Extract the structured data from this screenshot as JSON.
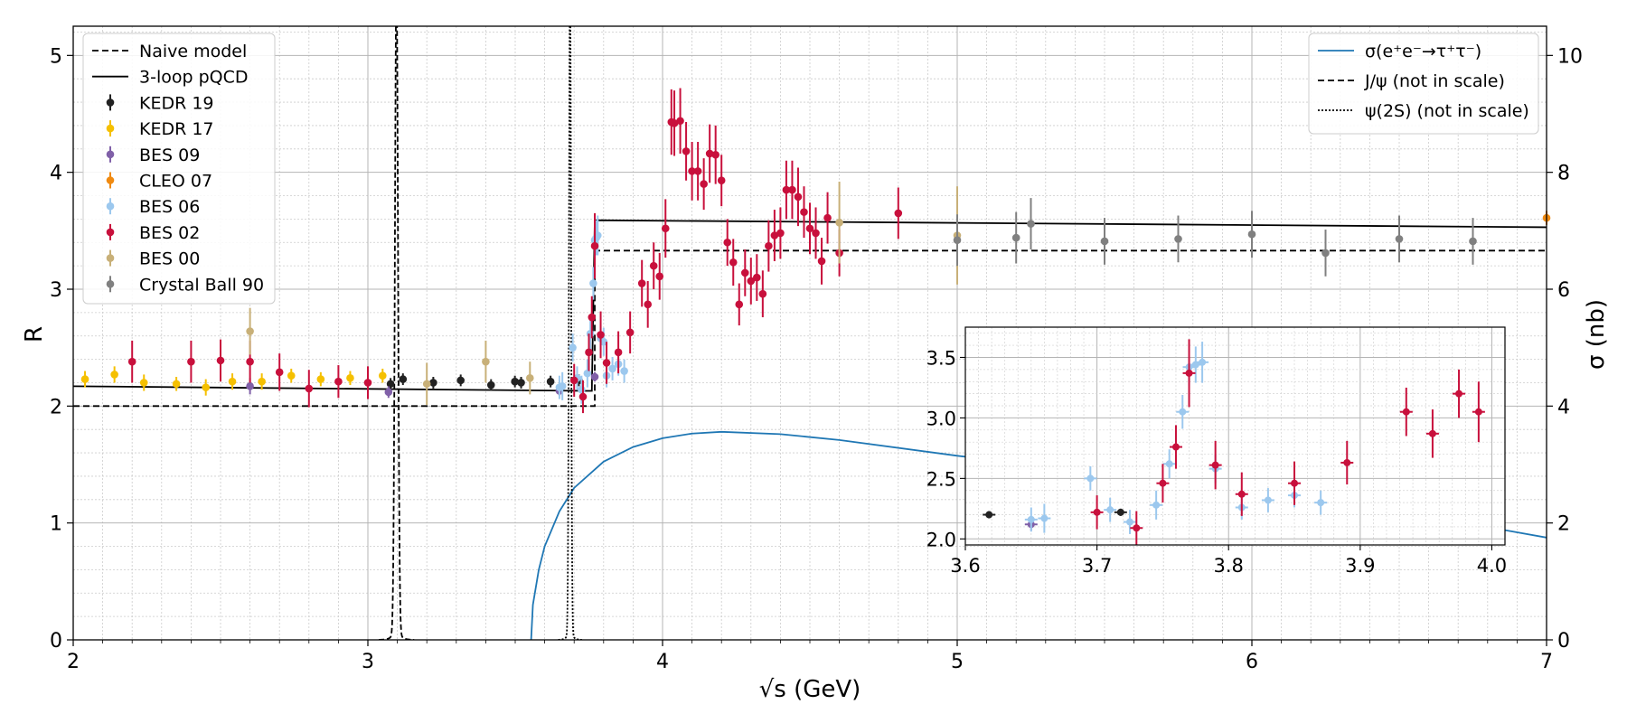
{
  "chart_data": {
    "type": "scatter",
    "xlabel": "√s (GeV)",
    "ylabel": "R",
    "y2label": "σ (nb)",
    "xlim": [
      2,
      7
    ],
    "ylim": [
      0,
      5.25
    ],
    "y2lim": [
      0,
      10.5
    ],
    "x_ticks": [
      "2",
      "3",
      "4",
      "5",
      "6",
      "7"
    ],
    "y_ticks": [
      "0",
      "1",
      "2",
      "3",
      "4",
      "5"
    ],
    "y2_ticks": [
      "0",
      "2",
      "4",
      "6",
      "8",
      "10"
    ],
    "grid": true,
    "legend_left_position": "upper-left",
    "legend_right_position": "upper-right",
    "legend_left": [
      {
        "label": "Naive model",
        "style": "dashed-line",
        "color": "#000000"
      },
      {
        "label": "3-loop pQCD",
        "style": "solid-line",
        "color": "#000000"
      },
      {
        "label": "KEDR 19",
        "style": "errorbar",
        "color": "#222222"
      },
      {
        "label": "KEDR 17",
        "style": "errorbar",
        "color": "#f5c000"
      },
      {
        "label": "BES 09",
        "style": "errorbar",
        "color": "#8060a8"
      },
      {
        "label": "CLEO 07",
        "style": "errorbar",
        "color": "#f08a10"
      },
      {
        "label": "BES 06",
        "style": "errorbar",
        "color": "#9cc8ee"
      },
      {
        "label": "BES 02",
        "style": "errorbar",
        "color": "#c8103c"
      },
      {
        "label": "BES 00",
        "style": "errorbar",
        "color": "#c8b078"
      },
      {
        "label": "Crystal Ball 90",
        "style": "errorbar",
        "color": "#808080"
      }
    ],
    "legend_right": [
      {
        "label": "σ(e⁺e⁻→τ⁺τ⁻)",
        "style": "solid-line",
        "color": "#1f77b4"
      },
      {
        "label": "J/ψ (not in scale)",
        "style": "dashed-line",
        "color": "#000000"
      },
      {
        "label": "ψ(2S) (not in scale)",
        "style": "dotted-line",
        "color": "#000000"
      }
    ],
    "naive_model": {
      "x": [
        2,
        3.097,
        3.097,
        3.686,
        3.686,
        3.77,
        3.77,
        7
      ],
      "y": [
        2.0,
        2.0,
        2.0,
        2.0,
        2.0,
        2.0,
        3.33,
        3.33
      ]
    },
    "pqcd_3loop": {
      "x": [
        2,
        3.74,
        3.76,
        3.77,
        7
      ],
      "y": [
        2.17,
        2.13,
        2.13,
        3.59,
        3.53
      ]
    },
    "jpsi_peak": {
      "x0": 3.097,
      "width": 0.012,
      "peak_R": 5.25,
      "baseline_R": 0.0,
      "label": "J/ψ (not in scale)"
    },
    "psi2s_peak": {
      "x0": 3.686,
      "width": 0.008,
      "peak_R": 5.25,
      "baseline_R": 0.0,
      "label": "ψ(2S) (not in scale)"
    },
    "tau_xsec": {
      "name": "σ(e⁺e⁻→τ⁺τ⁻)",
      "axis": "right",
      "unit": "nb",
      "x": [
        3.554,
        3.56,
        3.58,
        3.6,
        3.65,
        3.7,
        3.8,
        3.9,
        4.0,
        4.1,
        4.2,
        4.4,
        4.6,
        5.0,
        5.5,
        6.0,
        6.5,
        7.0
      ],
      "y": [
        0.0,
        0.6,
        1.2,
        1.6,
        2.2,
        2.6,
        3.05,
        3.3,
        3.45,
        3.53,
        3.56,
        3.52,
        3.42,
        3.15,
        2.85,
        2.5,
        2.2,
        1.75
      ]
    },
    "series": [
      {
        "name": "KEDR 19",
        "color": "#222222",
        "x": [
          3.077,
          3.119,
          3.222,
          3.315,
          3.418,
          3.499,
          3.52,
          3.62,
          3.716
        ],
        "y": [
          2.19,
          2.23,
          2.2,
          2.22,
          2.18,
          2.21,
          2.2,
          2.21,
          2.22
        ],
        "err": [
          0.05,
          0.05,
          0.05,
          0.05,
          0.05,
          0.05,
          0.05,
          0.05,
          0.05
        ]
      },
      {
        "name": "KEDR 17",
        "color": "#f5c000",
        "x": [
          2.04,
          2.14,
          2.24,
          2.35,
          2.45,
          2.54,
          2.64,
          2.74,
          2.84,
          2.94,
          3.05
        ],
        "y": [
          2.23,
          2.27,
          2.2,
          2.19,
          2.16,
          2.21,
          2.21,
          2.26,
          2.23,
          2.24,
          2.26
        ],
        "err": [
          0.07,
          0.07,
          0.07,
          0.06,
          0.07,
          0.07,
          0.07,
          0.06,
          0.06,
          0.06,
          0.06
        ]
      },
      {
        "name": "BES 09",
        "color": "#8060a8",
        "x": [
          2.6,
          3.07,
          3.65,
          3.77
        ],
        "y": [
          2.17,
          2.12,
          2.13,
          2.25
        ],
        "err": [
          0.07,
          0.05,
          0.04,
          0.04
        ]
      },
      {
        "name": "CLEO 07",
        "color": "#f08a10",
        "x": [
          7.0
        ],
        "y": [
          3.61
        ],
        "err": [
          0.06
        ]
      },
      {
        "name": "BES 06",
        "color": "#9cc8ee",
        "x": [
          3.65,
          3.66,
          3.695,
          3.71,
          3.725,
          3.745,
          3.755,
          3.765,
          3.77,
          3.775,
          3.78,
          3.79,
          3.8,
          3.81,
          3.83,
          3.85,
          3.87
        ],
        "y": [
          2.16,
          2.17,
          2.5,
          2.24,
          2.14,
          2.28,
          2.62,
          3.05,
          3.42,
          3.44,
          3.46,
          2.58,
          2.55,
          2.26,
          2.32,
          2.36,
          2.3
        ],
        "err": [
          0.1,
          0.12,
          0.12,
          0.1,
          0.12,
          0.12,
          0.14,
          0.14,
          0.15,
          0.15,
          0.17,
          0.12,
          0.12,
          0.1,
          0.1,
          0.1,
          0.1
        ]
      },
      {
        "name": "BES 02",
        "color": "#c8103c",
        "x": [
          2.2,
          2.4,
          2.5,
          2.6,
          2.7,
          2.8,
          2.9,
          3.0,
          3.7,
          3.73,
          3.75,
          3.76,
          3.77,
          3.79,
          3.81,
          3.85,
          3.89,
          3.93,
          3.95,
          3.97,
          3.99,
          4.01,
          4.03,
          4.04,
          4.06,
          4.08,
          4.1,
          4.12,
          4.14,
          4.16,
          4.18,
          4.2,
          4.22,
          4.24,
          4.26,
          4.28,
          4.3,
          4.32,
          4.34,
          4.36,
          4.38,
          4.4,
          4.42,
          4.44,
          4.46,
          4.48,
          4.5,
          4.52,
          4.54,
          4.56,
          4.6,
          4.8
        ],
        "y": [
          2.38,
          2.38,
          2.39,
          2.38,
          2.29,
          2.15,
          2.21,
          2.2,
          2.22,
          2.08,
          2.46,
          2.76,
          3.37,
          2.61,
          2.37,
          2.46,
          2.63,
          3.05,
          2.87,
          3.2,
          3.11,
          3.52,
          4.43,
          4.42,
          4.44,
          4.18,
          4.01,
          4.01,
          3.9,
          4.16,
          4.15,
          3.93,
          3.4,
          3.23,
          2.87,
          3.14,
          3.07,
          3.1,
          2.96,
          3.37,
          3.46,
          3.48,
          3.85,
          3.85,
          3.79,
          3.66,
          3.52,
          3.48,
          3.24,
          3.61,
          3.31,
          3.65
        ],
        "err": [
          0.18,
          0.18,
          0.18,
          0.18,
          0.16,
          0.16,
          0.14,
          0.14,
          0.14,
          0.14,
          0.16,
          0.18,
          0.28,
          0.2,
          0.18,
          0.18,
          0.18,
          0.2,
          0.2,
          0.2,
          0.2,
          0.25,
          0.28,
          0.28,
          0.28,
          0.25,
          0.25,
          0.25,
          0.22,
          0.25,
          0.25,
          0.22,
          0.2,
          0.2,
          0.18,
          0.2,
          0.2,
          0.2,
          0.2,
          0.22,
          0.22,
          0.22,
          0.25,
          0.25,
          0.25,
          0.22,
          0.22,
          0.22,
          0.2,
          0.22,
          0.2,
          0.22
        ]
      },
      {
        "name": "BES 00",
        "color": "#c8b078",
        "x": [
          2.6,
          3.2,
          3.4,
          3.55,
          4.6,
          5.0
        ],
        "y": [
          2.64,
          2.19,
          2.38,
          2.24,
          3.57,
          3.46
        ],
        "err": [
          0.2,
          0.18,
          0.18,
          0.14,
          0.35,
          0.42
        ]
      },
      {
        "name": "Crystal Ball 90",
        "color": "#808080",
        "x": [
          5.0,
          5.2,
          5.25,
          5.5,
          5.75,
          6.0,
          6.25,
          6.5,
          6.75
        ],
        "y": [
          3.42,
          3.44,
          3.56,
          3.41,
          3.43,
          3.47,
          3.31,
          3.43,
          3.41
        ],
        "err": [
          0.22,
          0.22,
          0.22,
          0.2,
          0.2,
          0.2,
          0.2,
          0.2,
          0.2
        ]
      }
    ],
    "inset": {
      "xlim": [
        3.6,
        4.01
      ],
      "ylim": [
        1.95,
        3.75
      ],
      "x_ticks": [
        "3.6",
        "3.7",
        "3.8",
        "3.9",
        "4.0"
      ],
      "y_ticks": [
        "2.0",
        "2.5",
        "3.0",
        "3.5"
      ],
      "series": [
        {
          "name": "KEDR 19",
          "color": "#222222",
          "x": [
            3.618,
            3.718
          ],
          "y": [
            2.2,
            2.22
          ],
          "err": [
            0.03,
            0.03
          ]
        },
        {
          "name": "BES 09",
          "color": "#8060a8",
          "x": [
            3.65
          ],
          "y": [
            2.12
          ],
          "err": [
            0.05
          ]
        },
        {
          "name": "BES 06",
          "color": "#9cc8ee",
          "x": [
            3.65,
            3.66,
            3.695,
            3.71,
            3.725,
            3.745,
            3.755,
            3.765,
            3.77,
            3.775,
            3.78,
            3.79,
            3.81,
            3.83,
            3.85,
            3.87
          ],
          "y": [
            2.16,
            2.17,
            2.5,
            2.24,
            2.14,
            2.28,
            2.62,
            3.05,
            3.42,
            3.44,
            3.46,
            2.58,
            2.26,
            2.32,
            2.36,
            2.3
          ],
          "err": [
            0.1,
            0.12,
            0.1,
            0.1,
            0.1,
            0.12,
            0.12,
            0.14,
            0.15,
            0.15,
            0.17,
            0.12,
            0.1,
            0.1,
            0.1,
            0.1
          ]
        },
        {
          "name": "BES 02",
          "color": "#c8103c",
          "x": [
            3.7,
            3.73,
            3.75,
            3.76,
            3.77,
            3.79,
            3.81,
            3.85,
            3.89,
            3.935,
            3.955,
            3.975,
            3.99
          ],
          "y": [
            2.22,
            2.09,
            2.46,
            2.76,
            3.37,
            2.61,
            2.37,
            2.46,
            2.63,
            3.05,
            2.87,
            3.2,
            3.05
          ],
          "err": [
            0.14,
            0.14,
            0.16,
            0.18,
            0.28,
            0.2,
            0.18,
            0.18,
            0.18,
            0.2,
            0.2,
            0.2,
            0.25
          ]
        }
      ]
    }
  }
}
